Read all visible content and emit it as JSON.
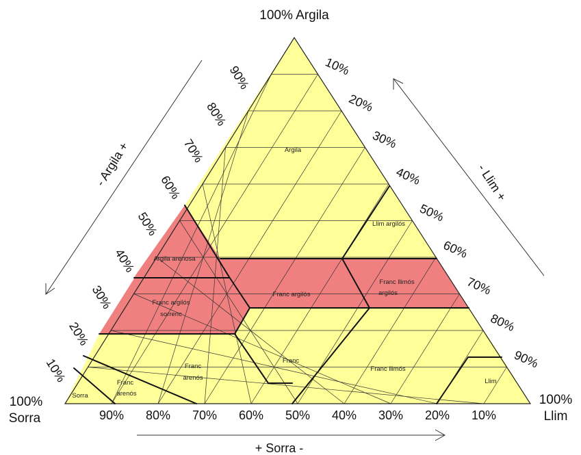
{
  "vertices": {
    "top": "100% Argila",
    "left_line1": "100%",
    "left_line2": "Sorra",
    "right_line1": "100%",
    "right_line2": "Llim"
  },
  "axes": {
    "left": "- Argila +",
    "right": "- Llim +",
    "bottom": "+ Sorra -"
  },
  "ticks": {
    "left": [
      "90%",
      "80%",
      "70%",
      "60%",
      "50%",
      "40%",
      "30%",
      "20%",
      "10%"
    ],
    "right": [
      "10%",
      "20%",
      "30%",
      "40%",
      "50%",
      "60%",
      "70%",
      "80%",
      "90%"
    ],
    "bottom": [
      "90%",
      "80%",
      "70%",
      "60%",
      "50%",
      "40%",
      "30%",
      "20%",
      "10%"
    ]
  },
  "regions": {
    "argila": "Argila",
    "llim_argilos": "Llim argilós",
    "argila_arenosa": "Argila arenosa",
    "franc_argilos_sorrenc_1": "Franc argilós",
    "franc_argilos_sorrenc_2": "sorrenc",
    "franc_argilos": "Franc argilós",
    "franc_llimos_argilos_1": "Franc llimós",
    "franc_llimos_argilos_2": "argilós",
    "franc": "Franc",
    "franc_arenos_1": "Franc",
    "franc_arenos_2": "arenós",
    "arenos_franc_1": "Franc",
    "arenos_franc_2": "arenós",
    "franc_llimos": "Franc llimós",
    "llim": "Llim",
    "sorra": "Sorra"
  },
  "colors": {
    "yellow": "#ffff99",
    "red": "#f08080",
    "grid": "#333333",
    "boundary": "#111111"
  }
}
